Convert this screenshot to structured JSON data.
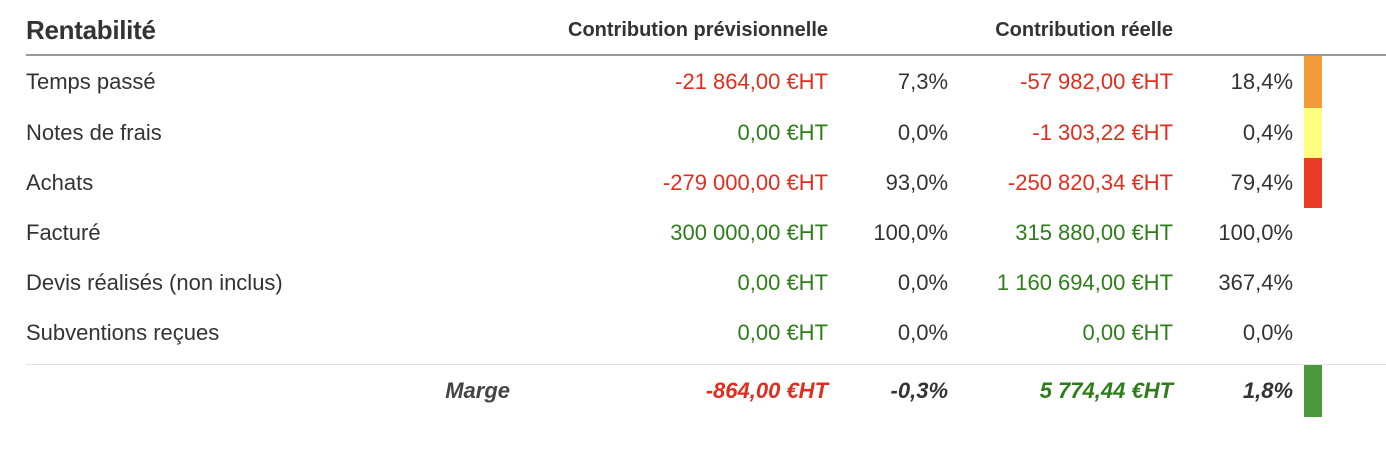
{
  "title": "Rentabilité",
  "headers": {
    "previsionnelle": "Contribution prévisionnelle",
    "reelle": "Contribution réelle"
  },
  "colors": {
    "negative": "#e02d1c",
    "positive": "#2e7d1a"
  },
  "rows": [
    {
      "label": "Temps passé",
      "prev": "-21 864,00 €HT",
      "prev_pct": "7,3%",
      "reel": "-57 982,00 €HT",
      "reel_pct": "18,4%",
      "bar_color": "#f29c38"
    },
    {
      "label": "Notes de frais",
      "prev": "0,00 €HT",
      "prev_pct": "0,0%",
      "reel": "-1 303,22 €HT",
      "reel_pct": "0,4%",
      "bar_color": "#fdfd80"
    },
    {
      "label": "Achats",
      "prev": "-279 000,00 €HT",
      "prev_pct": "93,0%",
      "reel": "-250 820,34 €HT",
      "reel_pct": "79,4%",
      "bar_color": "#ea3b24"
    },
    {
      "label": "Facturé",
      "prev": "300 000,00 €HT",
      "prev_pct": "100,0%",
      "reel": "315 880,00 €HT",
      "reel_pct": "100,0%"
    },
    {
      "label": "Devis réalisés (non inclus)",
      "prev": "0,00 €HT",
      "prev_pct": "0,0%",
      "reel": "1 160 694,00 €HT",
      "reel_pct": "367,4%"
    },
    {
      "label": "Subventions reçues",
      "prev": "0,00 €HT",
      "prev_pct": "0,0%",
      "reel": "0,00 €HT",
      "reel_pct": "0,0%"
    }
  ],
  "total": {
    "label": "Marge",
    "prev": "-864,00 €HT",
    "prev_pct": "-0,3%",
    "reel": "5 774,44 €HT",
    "reel_pct": "1,8%",
    "bar_color": "#4a9a3c"
  }
}
